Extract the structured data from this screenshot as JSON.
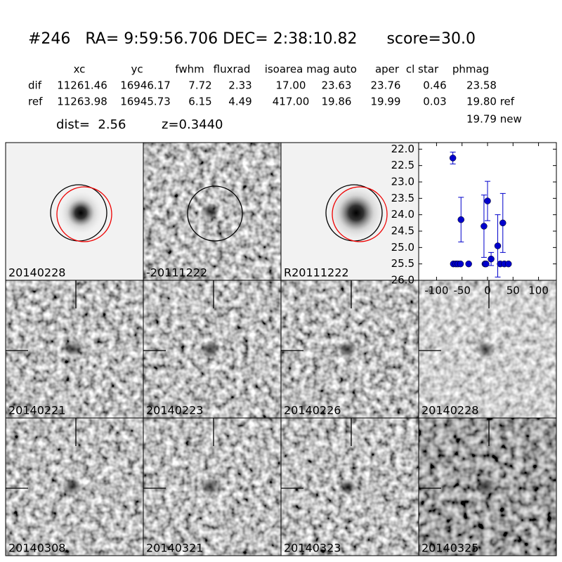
{
  "title": "#246   RA= 9:59:56.706 DEC= 2:38:10.82      score=30.0",
  "table": {
    "columns": [
      "xc",
      "yc",
      "fwhm",
      "fluxrad",
      "isoarea",
      "mag auto",
      "aper",
      "cl star",
      "phmag"
    ],
    "rows": [
      [
        "dif",
        "11261.46",
        "16946.17",
        "7.72",
        "2.33",
        "17.00",
        "23.63",
        "23.76",
        "0.46",
        "23.58"
      ],
      [
        "ref",
        "11263.98",
        "16945.73",
        "6.15",
        "4.49",
        "417.00",
        "19.86",
        "19.99",
        "0.03",
        "19.80 ref"
      ]
    ],
    "extra": "19.79 new"
  },
  "dist": "dist=  2.56",
  "z": "z=0.3440",
  "panels": [
    "20140228",
    "-20111222",
    "R20111222",
    "20140221",
    "20140223",
    "20140226",
    "20140228",
    "20140308",
    "20140321",
    "20140323",
    "20140325"
  ],
  "chart_data": {
    "type": "scatter",
    "x": [
      -68,
      -67,
      -62,
      -58,
      -53,
      -52,
      -37,
      -7,
      -5,
      -3,
      0,
      7,
      20,
      25,
      30,
      33,
      41
    ],
    "series": [
      {
        "values": [
          22.27,
          25.5,
          25.5,
          25.5,
          25.5,
          24.15,
          25.5,
          24.35,
          25.5,
          25.5,
          23.58,
          25.35,
          24.95,
          25.5,
          24.25,
          25.5,
          25.5
        ],
        "errors": [
          0.18,
          null,
          null,
          null,
          null,
          0.68,
          null,
          0.95,
          null,
          null,
          0.6,
          0.2,
          0.95,
          null,
          0.9,
          null,
          null
        ],
        "color": "#0000cc"
      }
    ],
    "xlim": [
      -135,
      135
    ],
    "ylim": [
      21.8,
      26.0
    ],
    "y_inverted": true,
    "xticks": [
      -100,
      -50,
      0,
      50,
      100
    ],
    "yticks": [
      {
        "value": 22.0,
        "label": "22.0"
      },
      {
        "value": 22.5,
        "label": "22.5"
      },
      {
        "value": 23.0,
        "label": "23.0"
      },
      {
        "value": 23.5,
        "label": "23.5"
      },
      {
        "value": 24.0,
        "label": "24.0"
      },
      {
        "value": 24.5,
        "label": "24.5"
      },
      {
        "value": 25.0,
        "label": "25.0"
      },
      {
        "value": 25.5,
        "label": "25.5"
      },
      {
        "value": 26.0,
        "label": "26.0"
      }
    ]
  }
}
